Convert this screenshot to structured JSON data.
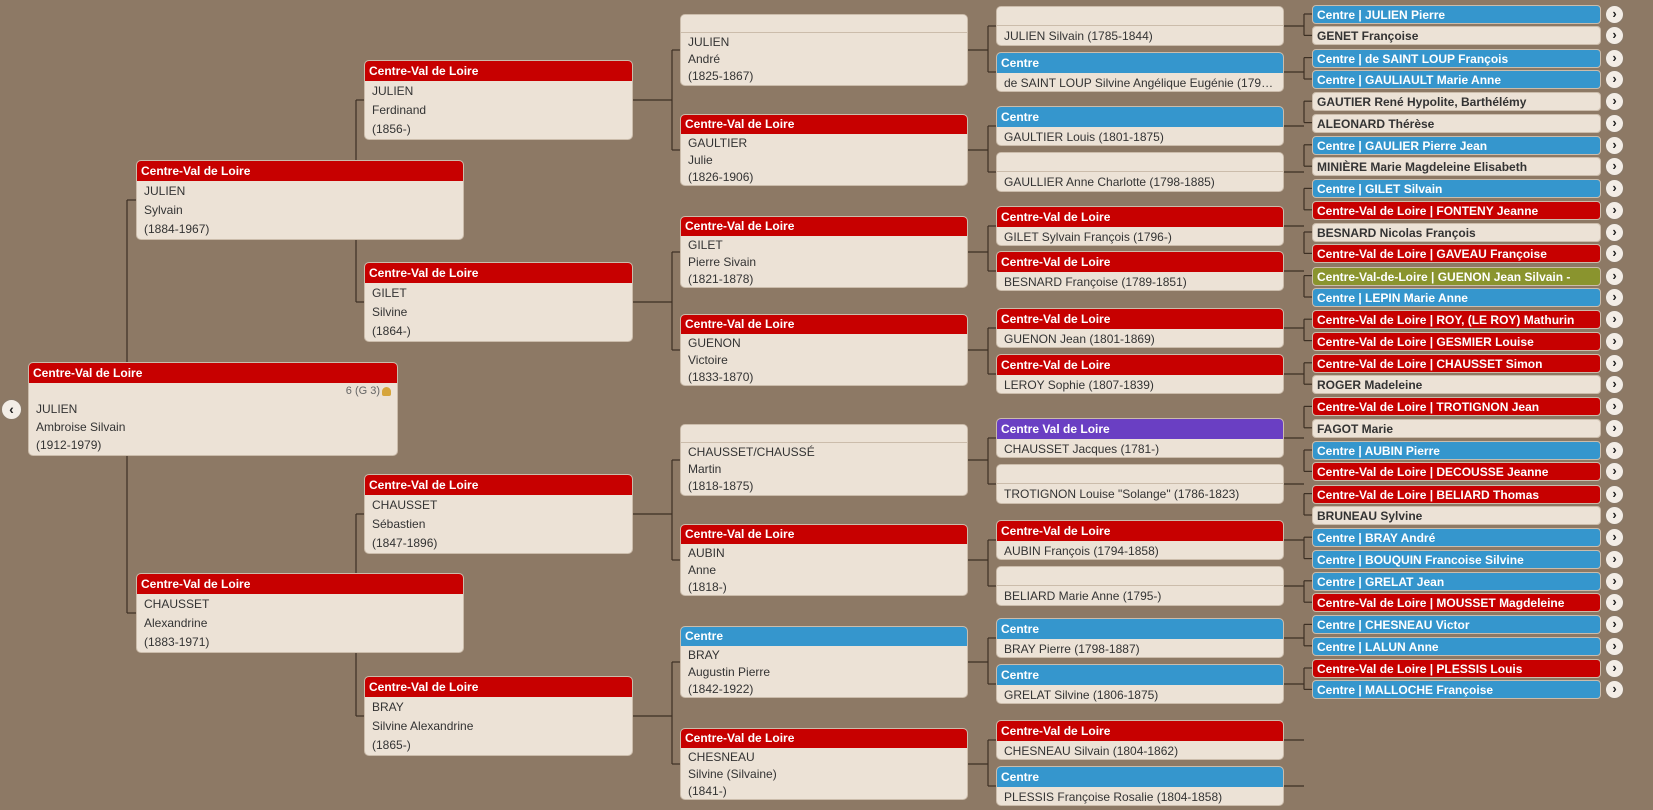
{
  "colors": {
    "Centre-Val de Loire": "#c70000",
    "Centre": "#3596cd",
    "Centre Val de Loire": "#6a3fc3",
    "Centre-Val-de-Loire": "#8a942e",
    "background": "#8d7965"
  },
  "nav": {
    "back_icon": "chevron-left-icon",
    "back_glyph": "‹",
    "expand_glyph": "›"
  },
  "root": {
    "region": "Centre-Val de Loire",
    "badge": "6 (G 3)",
    "lines": [
      "JULIEN",
      "Ambroise Silvain",
      "(1912-1979)"
    ]
  },
  "gen1": [
    {
      "region": "Centre-Val de Loire",
      "lines": [
        "JULIEN",
        "Sylvain",
        "(1884-1967)"
      ]
    },
    {
      "region": "Centre-Val de Loire",
      "lines": [
        "CHAUSSET",
        "Alexandrine",
        "(1883-1971)"
      ]
    }
  ],
  "gen2": [
    {
      "region": "Centre-Val de Loire",
      "lines": [
        "JULIEN",
        "Ferdinand",
        "(1856-)"
      ]
    },
    {
      "region": "Centre-Val de Loire",
      "lines": [
        "GILET",
        "Silvine",
        "(1864-)"
      ]
    },
    {
      "region": "Centre-Val de Loire",
      "lines": [
        "CHAUSSET",
        "Sébastien",
        "(1847-1896)"
      ]
    },
    {
      "region": "Centre-Val de Loire",
      "lines": [
        "BRAY",
        "Silvine Alexandrine",
        "(1865-)"
      ]
    }
  ],
  "gen3": [
    {
      "region": "",
      "lines": [
        "JULIEN",
        "André",
        "(1825-1867)"
      ]
    },
    {
      "region": "Centre-Val de Loire",
      "lines": [
        "GAULTIER",
        "Julie",
        "(1826-1906)"
      ]
    },
    {
      "region": "Centre-Val de Loire",
      "lines": [
        "GILET",
        "Pierre Sivain",
        "(1821-1878)"
      ]
    },
    {
      "region": "Centre-Val de Loire",
      "lines": [
        "GUENON",
        "Victoire",
        "(1833-1870)"
      ]
    },
    {
      "region": "",
      "lines": [
        "CHAUSSET/CHAUSSÉ",
        "Martin",
        "(1818-1875)"
      ]
    },
    {
      "region": "Centre-Val de Loire",
      "lines": [
        "AUBIN",
        "Anne",
        "(1818-)"
      ]
    },
    {
      "region": "Centre",
      "lines": [
        "BRAY",
        "Augustin Pierre",
        "(1842-1922)"
      ]
    },
    {
      "region": "Centre-Val de Loire",
      "lines": [
        "CHESNEAU",
        "Silvine (Silvaine)",
        "(1841-)"
      ]
    }
  ],
  "gen4": [
    {
      "region": "",
      "text": "JULIEN Silvain (1785-1844)"
    },
    {
      "region": "Centre",
      "text": "de SAINT LOUP Silvine Angélique Eugénie (1799-..."
    },
    {
      "region": "Centre",
      "text": "GAULTIER Louis (1801-1875)"
    },
    {
      "region": "",
      "text": "GAULLIER Anne Charlotte (1798-1885)"
    },
    {
      "region": "Centre-Val de Loire",
      "text": "GILET Sylvain François (1796-)"
    },
    {
      "region": "Centre-Val de Loire",
      "text": "BESNARD Françoise (1789-1851)"
    },
    {
      "region": "Centre-Val de Loire",
      "text": "GUENON Jean (1801-1869)"
    },
    {
      "region": "Centre-Val de Loire",
      "text": "LEROY Sophie (1807-1839)"
    },
    {
      "region": "Centre Val de Loire",
      "text": "CHAUSSET Jacques (1781-)"
    },
    {
      "region": "",
      "text": "TROTIGNON Louise \"Solange\" (1786-1823)"
    },
    {
      "region": "Centre-Val de Loire",
      "text": "AUBIN François (1794-1858)"
    },
    {
      "region": "",
      "text": "BELIARD Marie Anne (1795-)"
    },
    {
      "region": "Centre",
      "text": "BRAY Pierre (1798-1887)"
    },
    {
      "region": "Centre",
      "text": "GRELAT Silvine (1806-1875)"
    },
    {
      "region": "Centre-Val de Loire",
      "text": "CHESNEAU Silvain (1804-1862)"
    },
    {
      "region": "Centre",
      "text": "PLESSIS Françoise Rosalie (1804-1858)"
    }
  ],
  "gen5": [
    {
      "color": "Centre",
      "text": "Centre | JULIEN Pierre"
    },
    {
      "color": "",
      "text": "GENET Françoise"
    },
    {
      "color": "Centre",
      "text": "Centre | de SAINT LOUP François"
    },
    {
      "color": "Centre",
      "text": "Centre | GAULIAULT Marie Anne"
    },
    {
      "color": "",
      "text": "GAUTIER René Hypolite, Barthélémy"
    },
    {
      "color": "",
      "text": "ALEONARD Thérèse"
    },
    {
      "color": "Centre",
      "text": "Centre | GAULIER Pierre Jean"
    },
    {
      "color": "",
      "text": "MINIÈRE Marie Magdeleine Elisabeth"
    },
    {
      "color": "Centre",
      "text": "Centre | GILET Silvain"
    },
    {
      "color": "Centre-Val de Loire",
      "text": "Centre-Val de Loire | FONTENY Jeanne"
    },
    {
      "color": "",
      "text": "BESNARD Nicolas François"
    },
    {
      "color": "Centre-Val de Loire",
      "text": "Centre-Val de Loire | GAVEAU Françoise"
    },
    {
      "color": "Centre-Val-de-Loire",
      "text": "Centre-Val-de-Loire | GUENON Jean Silvain -"
    },
    {
      "color": "Centre",
      "text": "Centre | LEPIN Marie Anne"
    },
    {
      "color": "Centre-Val de Loire",
      "text": "Centre-Val de Loire | ROY, (LE ROY) Mathurin"
    },
    {
      "color": "Centre-Val de Loire",
      "text": "Centre-Val de Loire | GESMIER Louise"
    },
    {
      "color": "Centre-Val de Loire",
      "text": "Centre-Val de Loire | CHAUSSET Simon"
    },
    {
      "color": "",
      "text": "ROGER Madeleine"
    },
    {
      "color": "Centre-Val de Loire",
      "text": "Centre-Val de Loire | TROTIGNON Jean"
    },
    {
      "color": "",
      "text": "FAGOT Marie"
    },
    {
      "color": "Centre",
      "text": "Centre | AUBIN Pierre"
    },
    {
      "color": "Centre-Val de Loire",
      "text": "Centre-Val de Loire | DECOUSSE Jeanne"
    },
    {
      "color": "Centre-Val de Loire",
      "text": "Centre-Val de Loire | BELIARD Thomas"
    },
    {
      "color": "",
      "text": "BRUNEAU Sylvine"
    },
    {
      "color": "Centre",
      "text": "Centre | BRAY André"
    },
    {
      "color": "Centre",
      "text": "Centre | BOUQUIN Francoise Silvine"
    },
    {
      "color": "Centre",
      "text": "Centre | GRELAT Jean"
    },
    {
      "color": "Centre-Val de Loire",
      "text": "Centre-Val de Loire | MOUSSET Magdeleine"
    },
    {
      "color": "Centre",
      "text": "Centre | CHESNEAU Victor"
    },
    {
      "color": "Centre",
      "text": "Centre | LALUN Anne"
    },
    {
      "color": "Centre-Val de Loire",
      "text": "Centre-Val de Loire | PLESSIS Louis"
    },
    {
      "color": "Centre",
      "text": "Centre | MALLOCHE Françoise"
    }
  ]
}
